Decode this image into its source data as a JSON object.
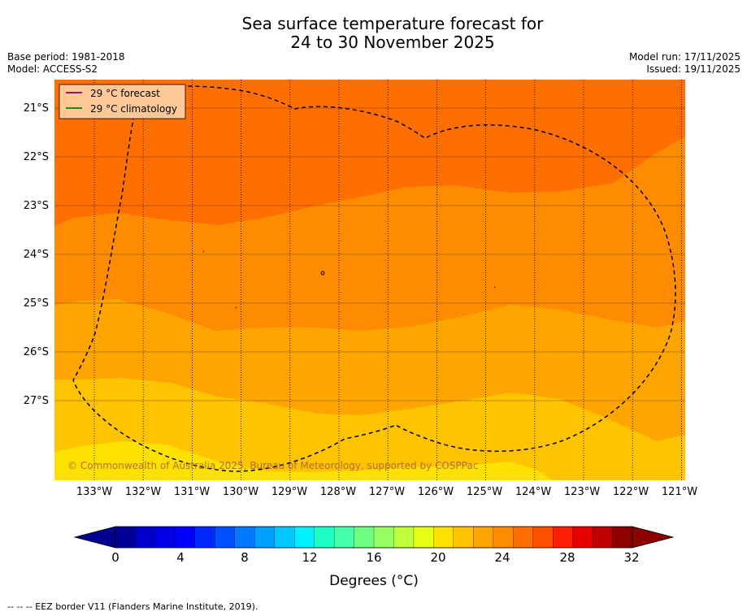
{
  "title": {
    "line1": "Sea surface temperature forecast for",
    "line2": "24 to 30 November 2025"
  },
  "meta": {
    "base_period": "Base period: 1981-2018",
    "model": "Model: ACCESS-S2",
    "model_run": "Model run: 17/11/2025",
    "issued": "Issued: 19/11/2025"
  },
  "legend": {
    "forecast_label": "29 °C  forecast",
    "climatology_label": "29 °C  climatology",
    "forecast_color": "#800080",
    "climatology_color": "#008000",
    "background_color": "#FFC896"
  },
  "map": {
    "lat_labels": [
      "21°S",
      "22°S",
      "23°S",
      "24°S",
      "25°S",
      "26°S",
      "27°S"
    ],
    "lon_labels": [
      "133°W",
      "132°W",
      "131°W",
      "130°W",
      "129°W",
      "128°W",
      "127°W",
      "126°W",
      "125°W",
      "124°W",
      "123°W",
      "122°W",
      "121°W"
    ],
    "copyright": "© Commonwealth of Australia 2025, Bureau of Meteorology, supported by COSPPac",
    "band_colors": [
      "#FF6E00",
      "#FF8C00",
      "#FFA500",
      "#FFC300",
      "#FFE100"
    ]
  },
  "colorbar": {
    "tick_labels": [
      "0",
      "4",
      "8",
      "12",
      "16",
      "20",
      "24",
      "28",
      "32"
    ],
    "title": "Degrees (°C)",
    "under_color": "#00008C",
    "over_color": "#8C0000",
    "colors": [
      "#000096",
      "#0000C8",
      "#0000E6",
      "#0000FF",
      "#0028FF",
      "#0050FF",
      "#0078FF",
      "#00A0FF",
      "#00C8FF",
      "#00F0FF",
      "#1EFFC8",
      "#46FFAA",
      "#6EFF82",
      "#96FF64",
      "#BEFF3C",
      "#E6FF14",
      "#FFE100",
      "#FFC300",
      "#FFA500",
      "#FF8C00",
      "#FF6E00",
      "#FF5000",
      "#FF1E00",
      "#E60000",
      "#BE0000",
      "#8C0000"
    ]
  },
  "footer": "--  --  -- EEZ border V11 (Flanders Marine Institute, 2019)."
}
